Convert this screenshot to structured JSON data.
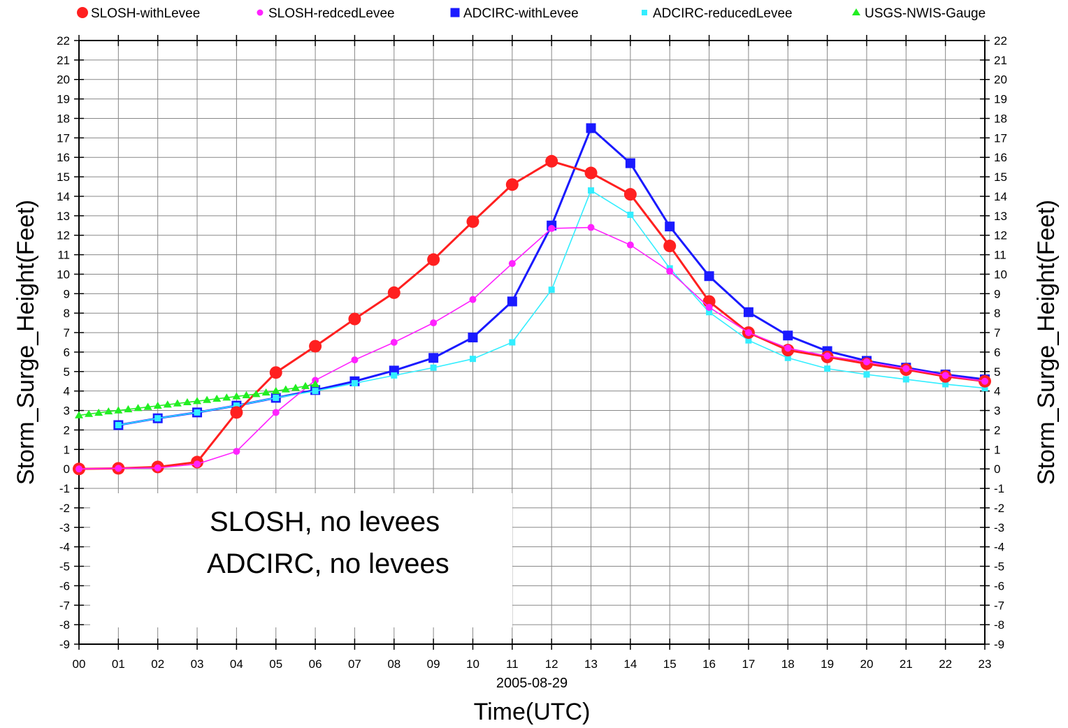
{
  "chart_data": {
    "type": "line",
    "title": "",
    "xlabel": "Time(UTC)",
    "xsublabel": "2005-08-29",
    "ylabel": "Storm_Surge_Height(Feet)",
    "ylabel_right": "Storm_Surge_Height(Feet)",
    "xlim": [
      0,
      23
    ],
    "ylim": [
      -9,
      22
    ],
    "categories": [
      "00",
      "01",
      "02",
      "03",
      "04",
      "05",
      "06",
      "07",
      "08",
      "09",
      "10",
      "11",
      "12",
      "13",
      "14",
      "15",
      "16",
      "17",
      "18",
      "19",
      "20",
      "21",
      "22",
      "23"
    ],
    "yticks": [
      -9,
      -8,
      -7,
      -6,
      -5,
      -4,
      -3,
      -2,
      -1,
      0,
      1,
      2,
      3,
      4,
      5,
      6,
      7,
      8,
      9,
      10,
      11,
      12,
      13,
      14,
      15,
      16,
      17,
      18,
      19,
      20,
      21,
      22
    ],
    "grid": true,
    "legend_position": "top",
    "series": [
      {
        "name": "SLOSH-withLevee",
        "color": "#ff2020",
        "marker": "circle",
        "marker_size": "large",
        "x": [
          0,
          1,
          2,
          3,
          4,
          5,
          6,
          7,
          8,
          9,
          10,
          11,
          12,
          13,
          14,
          15,
          16,
          17,
          18,
          19,
          20,
          21,
          22,
          23
        ],
        "y": [
          0.0,
          0.03,
          0.1,
          0.35,
          2.9,
          4.95,
          6.3,
          7.7,
          9.05,
          10.75,
          12.7,
          14.6,
          15.8,
          15.2,
          14.1,
          11.45,
          8.6,
          7.0,
          6.1,
          5.75,
          5.4,
          5.1,
          4.75,
          4.5
        ]
      },
      {
        "name": "SLOSH-redcedLevee",
        "color": "#ff22ff",
        "marker": "circle",
        "marker_size": "small",
        "x": [
          0,
          1,
          2,
          3,
          4,
          5,
          6,
          7,
          8,
          9,
          10,
          11,
          12,
          13,
          14,
          15,
          16,
          17,
          18,
          19,
          20,
          21,
          22,
          23
        ],
        "y": [
          0.0,
          0.03,
          0.05,
          0.25,
          0.9,
          2.9,
          4.55,
          5.6,
          6.5,
          7.5,
          8.7,
          10.55,
          12.35,
          12.4,
          11.5,
          10.15,
          8.3,
          7.0,
          6.2,
          5.8,
          5.5,
          5.15,
          4.8,
          4.5
        ]
      },
      {
        "name": "ADCIRC-withLevee",
        "color": "#1a1aff",
        "marker": "square",
        "marker_size": "large",
        "x": [
          1,
          2,
          3,
          4,
          5,
          6,
          7,
          8,
          9,
          10,
          11,
          12,
          13,
          14,
          15,
          16,
          17,
          18,
          19,
          20,
          21,
          22,
          23
        ],
        "y": [
          2.25,
          2.6,
          2.9,
          3.25,
          3.65,
          4.05,
          4.5,
          5.05,
          5.7,
          6.75,
          8.6,
          12.5,
          17.5,
          15.7,
          12.45,
          9.9,
          8.05,
          6.85,
          6.05,
          5.55,
          5.2,
          4.85,
          4.6
        ]
      },
      {
        "name": "ADCIRC-reducedLevee",
        "color": "#33eeff",
        "marker": "square",
        "marker_size": "small",
        "x": [
          1,
          2,
          3,
          4,
          5,
          6,
          7,
          8,
          9,
          10,
          11,
          12,
          13,
          14,
          15,
          16,
          17,
          18,
          19,
          20,
          21,
          22,
          23
        ],
        "y": [
          2.25,
          2.6,
          2.9,
          3.25,
          3.65,
          4.0,
          4.4,
          4.8,
          5.2,
          5.65,
          6.5,
          9.2,
          14.3,
          13.05,
          10.3,
          8.05,
          6.6,
          5.7,
          5.15,
          4.85,
          4.6,
          4.35,
          4.15
        ]
      },
      {
        "name": "USGS-NWIS-Gauge",
        "color": "#22ee22",
        "marker": "triangle",
        "marker_size": "small",
        "x": [
          0,
          0.25,
          0.5,
          0.75,
          1,
          1.25,
          1.5,
          1.75,
          2,
          2.25,
          2.5,
          2.75,
          3,
          3.25,
          3.5,
          3.75,
          4,
          4.25,
          4.5,
          4.75,
          5,
          5.25,
          5.5,
          5.75,
          6
        ],
        "y": [
          2.75,
          2.82,
          2.88,
          2.95,
          3.0,
          3.06,
          3.12,
          3.18,
          3.24,
          3.3,
          3.36,
          3.42,
          3.48,
          3.54,
          3.6,
          3.66,
          3.72,
          3.78,
          3.84,
          3.92,
          4.0,
          4.08,
          4.16,
          4.25,
          4.35
        ]
      }
    ],
    "annotations": [
      {
        "text": "SLOSH, no levees",
        "color": "#ff22dd"
      },
      {
        "text": "ADCIRC, no levees",
        "color": "#33ccee"
      }
    ]
  }
}
